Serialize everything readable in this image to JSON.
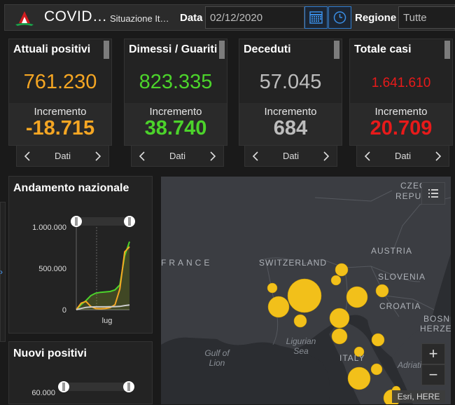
{
  "header": {
    "title": "COVID…",
    "subtitle": "Situazione It…",
    "date_label": "Data",
    "date_value": "02/12/2020",
    "region_label": "Regione",
    "region_value": "Tutte",
    "icons": {
      "logo": "italy-logo",
      "calendar": "calendar-icon",
      "clock": "clock-icon"
    }
  },
  "cards": [
    {
      "title": "Attuali positivi",
      "value": "761.230",
      "inc_label": "Incremento",
      "inc_value": "-18.715",
      "color": "#f5a623",
      "value_size": 29
    },
    {
      "title": "Dimessi / Guariti",
      "value": "823.335",
      "inc_label": "Incremento",
      "inc_value": "38.740",
      "color": "#4cd32b",
      "value_size": 29
    },
    {
      "title": "Deceduti",
      "value": "57.045",
      "inc_label": "Incremento",
      "inc_value": "684",
      "color": "#bdbdbd",
      "value_size": 29
    },
    {
      "title": "Totale casi",
      "value": "1.641.610",
      "inc_label": "Incremento",
      "inc_value": "20.709",
      "color": "#e81a1a",
      "value_size": 19
    }
  ],
  "pager": {
    "label": "Dati"
  },
  "panels": {
    "andamento": {
      "title": "Andamento nazionale",
      "chart_data": {
        "type": "line",
        "y_ticks": [
          "1.000.000",
          "500.000",
          "0"
        ],
        "ylim": [
          0,
          1000000
        ],
        "x_tick": "lug",
        "series": [
          {
            "color": "#4cd32b",
            "values": [
              0,
              60000,
              110000,
              170000,
              200000,
              210000,
              215000,
              220000,
              240000,
              300000,
              650000,
              823335
            ]
          },
          {
            "color": "#f5a623",
            "values": [
              0,
              80000,
              100000,
              40000,
              15000,
              12000,
              15000,
              25000,
              60000,
              250000,
              700000,
              761230
            ]
          },
          {
            "color": "#cccccc",
            "values": [
              0,
              15000,
              28000,
              33000,
              35000,
              35000,
              35000,
              36000,
              37000,
              40000,
              50000,
              57045
            ]
          }
        ]
      }
    },
    "nuovi": {
      "title": "Nuovi positivi",
      "chart_data": {
        "type": "bar",
        "y_ticks": [
          "60.000"
        ]
      }
    }
  },
  "map": {
    "labels": [
      "FRANCE",
      "SWITZERLAND",
      "AUSTRIA",
      "SLOVENIA",
      "CROATIA",
      "ITALY"
    ],
    "labels_partial": [
      "CZECH",
      "REPUBL",
      "BOSNI",
      "HERZEG"
    ],
    "sea_labels": [
      "Ligurian Sea",
      "Gulf of Lion",
      "Adriati"
    ],
    "attribution": "Esri, HERE",
    "zoom_in": "+",
    "zoom_out": "−",
    "bubble_color": "#f2c01a"
  }
}
